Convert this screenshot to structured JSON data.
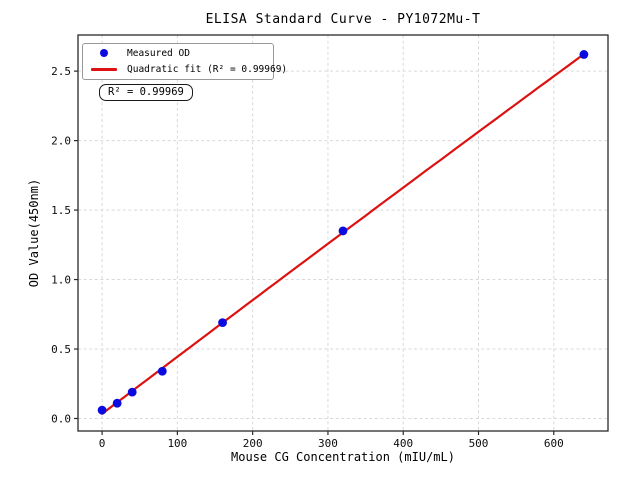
{
  "chart_data": {
    "type": "scatter",
    "title": "ELISA Standard Curve - PY1072Mu-T",
    "xlabel": "Mouse CG Concentration (mIU/mL)",
    "ylabel": "OD Value(450nm)",
    "xlim": [
      -32,
      672
    ],
    "ylim": [
      -0.09,
      2.76
    ],
    "x_ticks": [
      0,
      100,
      200,
      300,
      400,
      500,
      600
    ],
    "y_ticks": [
      0.0,
      0.5,
      1.0,
      1.5,
      2.0,
      2.5
    ],
    "grid": true,
    "grid_color": "#d9d9d9",
    "frame_color": "#2a2a2a",
    "series": [
      {
        "name": "Measured OD",
        "type": "scatter",
        "color": "#0b0be0",
        "marker": "circle",
        "points": [
          [
            0,
            0.06
          ],
          [
            20,
            0.11
          ],
          [
            40,
            0.19
          ],
          [
            80,
            0.34
          ],
          [
            160,
            0.69
          ],
          [
            320,
            1.35
          ],
          [
            640,
            2.62
          ]
        ]
      },
      {
        "name": "Quadratic fit",
        "type": "line",
        "color": "#dd1111",
        "fit": "quadratic",
        "r_squared": 0.99969,
        "x_range": [
          0,
          640
        ]
      }
    ],
    "legend": {
      "position": "upper left",
      "entries": [
        {
          "label": "Measured OD",
          "marker": "dot",
          "color": "#0b0be0"
        },
        {
          "label": "Quadratic fit (R² = 0.99969)",
          "marker": "line",
          "color": "#dd1111"
        }
      ]
    },
    "annotation": {
      "text": "R² = 0.99969"
    }
  }
}
